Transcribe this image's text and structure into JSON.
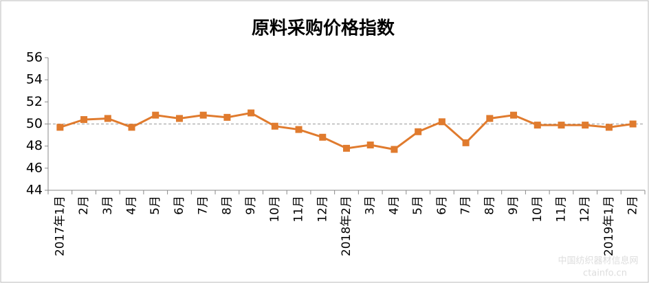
{
  "chart_data": {
    "type": "line",
    "title": "原料采购价格指数",
    "categories": [
      "2017年1月",
      "2月",
      "3月",
      "4月",
      "5月",
      "6月",
      "7月",
      "8月",
      "9月",
      "10月",
      "11月",
      "12月",
      "2018年2月",
      "3月",
      "4月",
      "5月",
      "6月",
      "7月",
      "8月",
      "9月",
      "10月",
      "11月",
      "12月",
      "2019年1月",
      "2月"
    ],
    "series": [
      {
        "name": "原料采购价格指数",
        "color": "#e07b2e",
        "values": [
          49.7,
          50.4,
          50.5,
          49.7,
          50.8,
          50.5,
          50.8,
          50.6,
          51.0,
          49.8,
          49.5,
          48.8,
          47.8,
          48.1,
          47.7,
          49.3,
          50.2,
          48.3,
          50.5,
          50.8,
          49.9,
          49.9,
          49.9,
          49.7,
          50.0
        ]
      }
    ],
    "ylim": [
      44,
      56
    ],
    "yticks": [
      44,
      46,
      48,
      50,
      52,
      54,
      56
    ],
    "reference_line": 50,
    "watermark": [
      "中国纺织器材信息网",
      "ctainfo.cn"
    ]
  }
}
